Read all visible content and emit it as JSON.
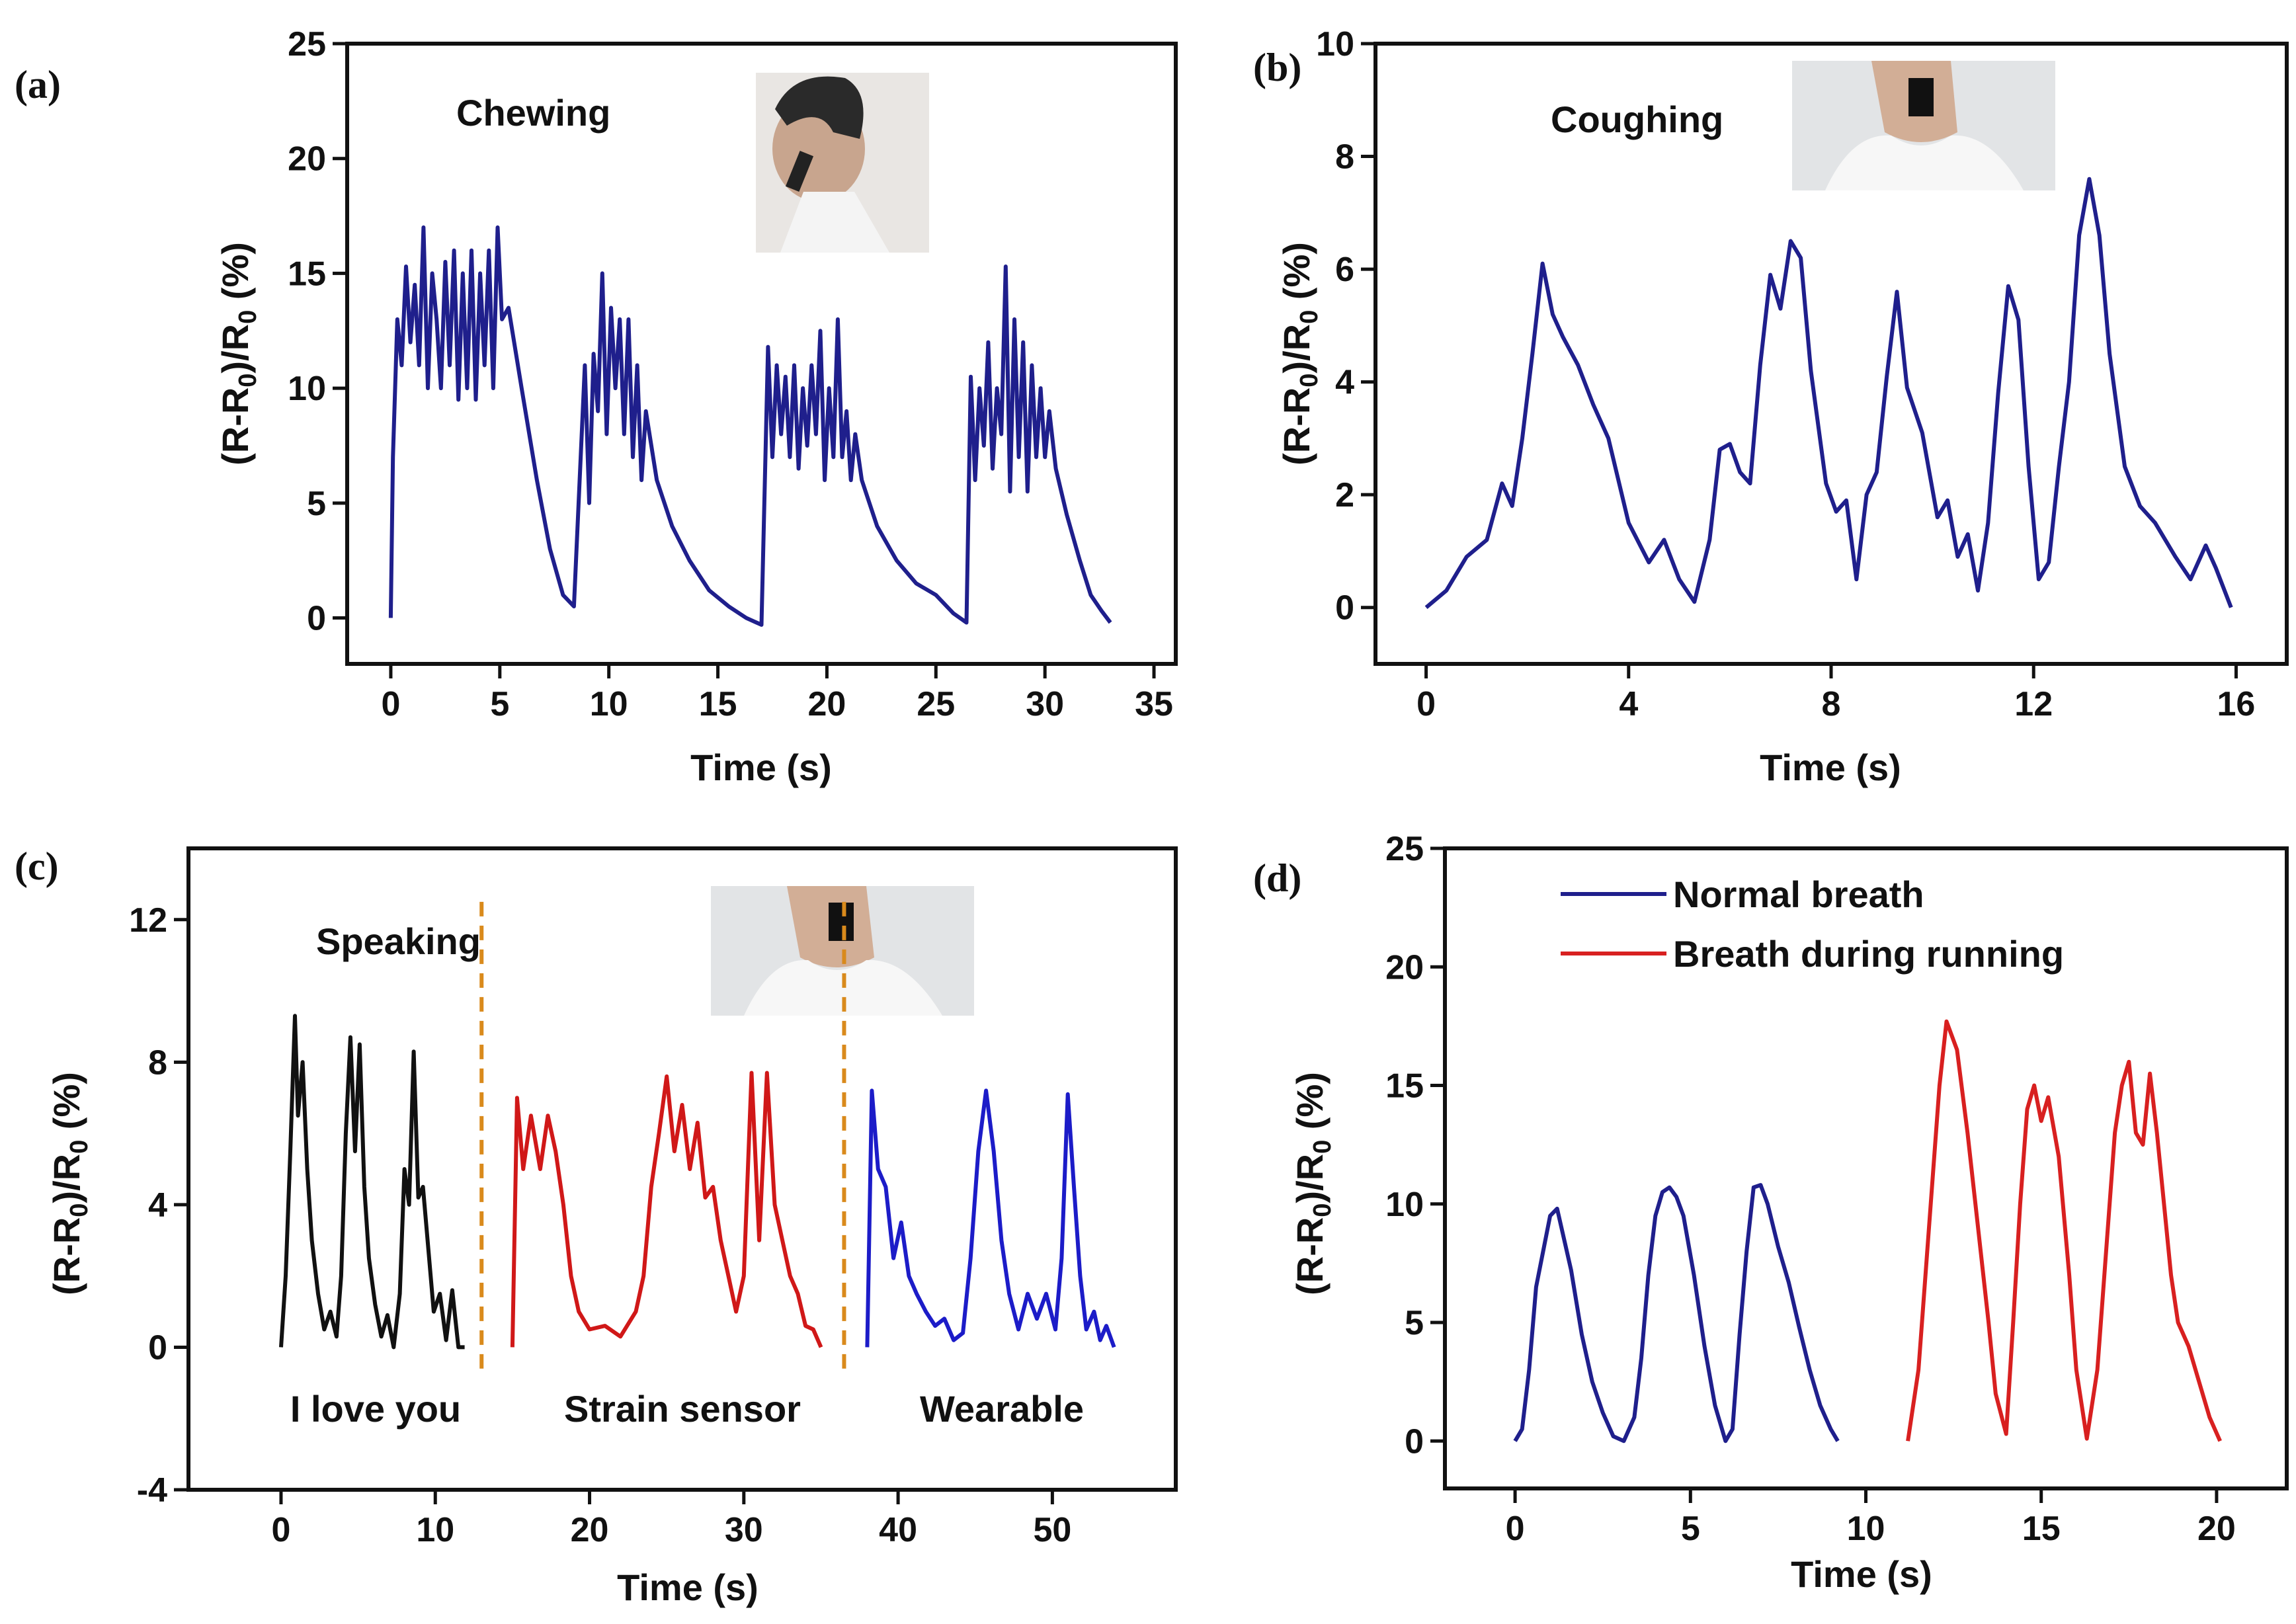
{
  "figure": {
    "panels": [
      {
        "label": "(a)",
        "title": "Chewing"
      },
      {
        "label": "(b)",
        "title": "Coughing"
      },
      {
        "label": "(c)",
        "title": "Speaking"
      },
      {
        "label": "(d)",
        "title": ""
      }
    ]
  },
  "chart_data": [
    {
      "type": "line",
      "panel": "(a)",
      "title": "Chewing",
      "xlabel": "Time (s)",
      "ylabel": "(R-R0)/R0 (%)",
      "xlim": [
        -2,
        36
      ],
      "ylim": [
        -2,
        25
      ],
      "xticks": [
        0,
        5,
        10,
        15,
        20,
        25,
        30,
        35
      ],
      "yticks": [
        0,
        5,
        10,
        15,
        20,
        25
      ],
      "series": [
        {
          "name": "Chewing",
          "color": "#1f1f8c",
          "x": [
            0,
            0.1,
            0.3,
            0.5,
            0.7,
            0.9,
            1.1,
            1.3,
            1.5,
            1.7,
            1.9,
            2.1,
            2.3,
            2.5,
            2.7,
            2.9,
            3.1,
            3.3,
            3.5,
            3.7,
            3.9,
            4.1,
            4.3,
            4.5,
            4.7,
            4.9,
            5.1,
            5.4,
            6.0,
            6.7,
            7.3,
            7.9,
            8.4,
            8.9,
            9.1,
            9.3,
            9.5,
            9.7,
            9.9,
            10.1,
            10.3,
            10.5,
            10.7,
            10.9,
            11.1,
            11.3,
            11.5,
            11.7,
            12.2,
            12.9,
            13.7,
            14.6,
            15.5,
            16.3,
            17.0,
            17.3,
            17.5,
            17.7,
            17.9,
            18.1,
            18.3,
            18.5,
            18.7,
            18.9,
            19.1,
            19.3,
            19.5,
            19.7,
            19.9,
            20.1,
            20.3,
            20.5,
            20.7,
            20.9,
            21.1,
            21.3,
            21.6,
            22.3,
            23.2,
            24.1,
            25.0,
            25.8,
            26.4,
            26.6,
            26.8,
            27.0,
            27.2,
            27.4,
            27.6,
            27.8,
            28.0,
            28.2,
            28.4,
            28.6,
            28.8,
            29.0,
            29.2,
            29.4,
            29.6,
            29.8,
            30.0,
            30.2,
            30.5,
            31.0,
            31.6,
            32.1,
            32.6,
            33.0
          ],
          "y": [
            0,
            7,
            13,
            11,
            15.3,
            12,
            14.5,
            11,
            17,
            10,
            15,
            13,
            10,
            15.5,
            11,
            16,
            9.5,
            15,
            10,
            16,
            9.5,
            15,
            11,
            16,
            10,
            17,
            13,
            13.5,
            10,
            6,
            3,
            1,
            0.5,
            11,
            5,
            11.5,
            9,
            15,
            8,
            13.5,
            10,
            13,
            8,
            13,
            7,
            11,
            6,
            9,
            6,
            4,
            2.5,
            1.2,
            0.5,
            0,
            -0.3,
            11.8,
            7,
            11,
            8,
            10.5,
            7,
            11,
            6.5,
            10,
            7.5,
            11,
            8,
            12.5,
            6,
            10,
            7,
            13,
            7,
            9,
            6,
            8,
            6,
            4,
            2.5,
            1.5,
            1,
            0.2,
            -0.2,
            10.5,
            6,
            10,
            7.5,
            12,
            6.5,
            10,
            8,
            15.3,
            5.5,
            13,
            7,
            12,
            5.5,
            11,
            7,
            10,
            7,
            9,
            6.5,
            4.5,
            2.5,
            1,
            0.3,
            -0.2
          ]
        }
      ]
    },
    {
      "type": "line",
      "panel": "(b)",
      "title": "Coughing",
      "xlabel": "Time (s)",
      "ylabel": "(R-R0)/R0 (%)",
      "xlim": [
        -1,
        17
      ],
      "ylim": [
        -1,
        10
      ],
      "xticks": [
        0,
        4,
        8,
        12,
        16
      ],
      "yticks": [
        0,
        2,
        4,
        6,
        8,
        10
      ],
      "series": [
        {
          "name": "Coughing",
          "color": "#1f1f8c",
          "x": [
            0,
            0.4,
            0.8,
            1.2,
            1.5,
            1.7,
            1.9,
            2.1,
            2.3,
            2.5,
            2.7,
            3.0,
            3.3,
            3.6,
            4.0,
            4.4,
            4.7,
            5.0,
            5.3,
            5.6,
            5.8,
            6.0,
            6.2,
            6.4,
            6.6,
            6.8,
            7.0,
            7.2,
            7.4,
            7.6,
            7.9,
            8.1,
            8.3,
            8.5,
            8.7,
            8.9,
            9.1,
            9.3,
            9.5,
            9.8,
            10.1,
            10.3,
            10.5,
            10.7,
            10.9,
            11.1,
            11.3,
            11.5,
            11.7,
            11.9,
            12.1,
            12.3,
            12.5,
            12.7,
            12.9,
            13.1,
            13.3,
            13.5,
            13.8,
            14.1,
            14.4,
            14.8,
            15.1,
            15.4,
            15.6,
            15.9
          ],
          "y": [
            0,
            0.3,
            0.9,
            1.2,
            2.2,
            1.8,
            3,
            4.5,
            6.1,
            5.2,
            4.8,
            4.3,
            3.6,
            3,
            1.5,
            0.8,
            1.2,
            0.5,
            0.1,
            1.2,
            2.8,
            2.9,
            2.4,
            2.2,
            4.3,
            5.9,
            5.3,
            6.5,
            6.2,
            4.2,
            2.2,
            1.7,
            1.9,
            0.5,
            2.0,
            2.4,
            4.1,
            5.6,
            3.9,
            3.1,
            1.6,
            1.9,
            0.9,
            1.3,
            0.3,
            1.5,
            3.8,
            5.7,
            5.1,
            2.5,
            0.5,
            0.8,
            2.5,
            4.0,
            6.6,
            7.6,
            6.6,
            4.5,
            2.5,
            1.8,
            1.5,
            0.9,
            0.5,
            1.1,
            0.7,
            0
          ]
        }
      ]
    },
    {
      "type": "line",
      "panel": "(c)",
      "title": "Speaking",
      "xlabel": "Time (s)",
      "ylabel": "(R-R0)/R0 (%)",
      "xlim": [
        -6,
        58
      ],
      "ylim": [
        -4,
        14
      ],
      "xticks": [
        0,
        10,
        20,
        30,
        40,
        50
      ],
      "yticks": [
        -4,
        0,
        4,
        8,
        12
      ],
      "annotations": [
        "I love you",
        "Strain sensor",
        "Wearable"
      ],
      "dividers_x": [
        13,
        36.5
      ],
      "series": [
        {
          "name": "I love you",
          "color": "#111111",
          "x": [
            0,
            0.3,
            0.6,
            0.9,
            1.1,
            1.4,
            1.7,
            2.0,
            2.4,
            2.8,
            3.2,
            3.6,
            3.9,
            4.2,
            4.5,
            4.8,
            5.1,
            5.4,
            5.7,
            6.1,
            6.5,
            6.9,
            7.3,
            7.7,
            8.0,
            8.3,
            8.6,
            8.9,
            9.2,
            9.5,
            9.9,
            10.3,
            10.7,
            11.1,
            11.5,
            11.9
          ],
          "y": [
            0,
            2,
            5.5,
            9.3,
            6.5,
            8,
            5,
            3,
            1.5,
            0.5,
            1,
            0.3,
            2,
            6,
            8.7,
            5.5,
            8.5,
            4.5,
            2.5,
            1.2,
            0.3,
            0.9,
            0,
            1.5,
            5,
            4,
            8.3,
            4.2,
            4.5,
            3,
            1,
            1.5,
            0.2,
            1.6,
            0,
            0
          ]
        },
        {
          "name": "Strain sensor",
          "color": "#d01818",
          "x": [
            15,
            15.3,
            15.7,
            16.2,
            16.8,
            17.3,
            17.8,
            18.3,
            18.8,
            19.3,
            20,
            21,
            22,
            23,
            23.5,
            24.0,
            24.5,
            25.0,
            25.5,
            26.0,
            26.5,
            27.0,
            27.5,
            28.0,
            28.5,
            29.0,
            29.5,
            30.0,
            30.5,
            31.0,
            31.5,
            32.0,
            32.5,
            33.0,
            33.5,
            34.0,
            34.5,
            35.0
          ],
          "y": [
            0,
            7,
            5,
            6.5,
            5,
            6.5,
            5.5,
            4,
            2,
            1,
            0.5,
            0.6,
            0.3,
            1,
            2,
            4.5,
            6,
            7.6,
            5.5,
            6.8,
            5,
            6.3,
            4.2,
            4.5,
            3,
            2,
            1,
            2,
            7.7,
            3,
            7.7,
            4,
            3,
            2,
            1.5,
            0.6,
            0.5,
            0
          ]
        },
        {
          "name": "Wearable",
          "color": "#1c1cc8",
          "x": [
            38,
            38.3,
            38.7,
            39.2,
            39.7,
            40.2,
            40.7,
            41.2,
            41.8,
            42.4,
            43.0,
            43.6,
            44.2,
            44.7,
            45.2,
            45.7,
            46.2,
            46.7,
            47.2,
            47.8,
            48.4,
            49.0,
            49.6,
            50.2,
            50.6,
            51.0,
            51.4,
            51.8,
            52.2,
            52.7,
            53.1,
            53.5,
            54.0
          ],
          "y": [
            0,
            7.2,
            5,
            4.5,
            2.5,
            3.5,
            2,
            1.5,
            1,
            0.6,
            0.8,
            0.2,
            0.4,
            2.5,
            5.5,
            7.2,
            5.5,
            3,
            1.5,
            0.5,
            1.5,
            0.8,
            1.5,
            0.5,
            2.5,
            7.1,
            4.5,
            2,
            0.5,
            1,
            0.2,
            0.6,
            0
          ]
        }
      ]
    },
    {
      "type": "line",
      "panel": "(d)",
      "title": "",
      "xlabel": "Time (s)",
      "ylabel": "(R-R0)/R0 (%)",
      "xlim": [
        -2,
        22
      ],
      "ylim": [
        -2,
        25
      ],
      "xticks": [
        0,
        5,
        10,
        15,
        20
      ],
      "yticks": [
        0,
        5,
        10,
        15,
        20,
        25
      ],
      "legend": "top-left",
      "series": [
        {
          "name": "Normal breath",
          "color": "#1f1f8c",
          "x": [
            0,
            0.2,
            0.4,
            0.6,
            0.8,
            1.0,
            1.2,
            1.4,
            1.6,
            1.9,
            2.2,
            2.5,
            2.8,
            3.1,
            3.4,
            3.6,
            3.8,
            4.0,
            4.2,
            4.4,
            4.6,
            4.8,
            5.1,
            5.4,
            5.7,
            6.0,
            6.2,
            6.4,
            6.6,
            6.8,
            7.0,
            7.2,
            7.5,
            7.8,
            8.1,
            8.4,
            8.7,
            9.0,
            9.2
          ],
          "y": [
            0,
            0.5,
            3,
            6.5,
            8,
            9.5,
            9.8,
            8.5,
            7.2,
            4.5,
            2.5,
            1.2,
            0.2,
            0,
            1,
            3.5,
            7,
            9.5,
            10.5,
            10.7,
            10.3,
            9.5,
            7,
            4,
            1.5,
            0,
            0.5,
            4.5,
            8,
            10.7,
            10.8,
            10,
            8.2,
            6.7,
            4.8,
            3,
            1.5,
            0.5,
            0
          ]
        },
        {
          "name": "Breath during running",
          "color": "#d82020",
          "x": [
            11.2,
            11.5,
            11.8,
            12.1,
            12.3,
            12.6,
            12.9,
            13.2,
            13.5,
            13.7,
            14.0,
            14.2,
            14.4,
            14.6,
            14.8,
            15.0,
            15.2,
            15.5,
            15.8,
            16.0,
            16.3,
            16.6,
            16.9,
            17.1,
            17.3,
            17.5,
            17.7,
            17.9,
            18.1,
            18.3,
            18.5,
            18.7,
            18.9,
            19.2,
            19.5,
            19.8,
            20.1
          ],
          "y": [
            0,
            3,
            9,
            15,
            17.7,
            16.5,
            13,
            9,
            5,
            2,
            0.3,
            5,
            10,
            14,
            15,
            13.5,
            14.5,
            12,
            7,
            3,
            0.1,
            3,
            9,
            13,
            15,
            16,
            13,
            12.5,
            15.5,
            13,
            10,
            7,
            5,
            4,
            2.5,
            1,
            0
          ]
        }
      ]
    }
  ]
}
